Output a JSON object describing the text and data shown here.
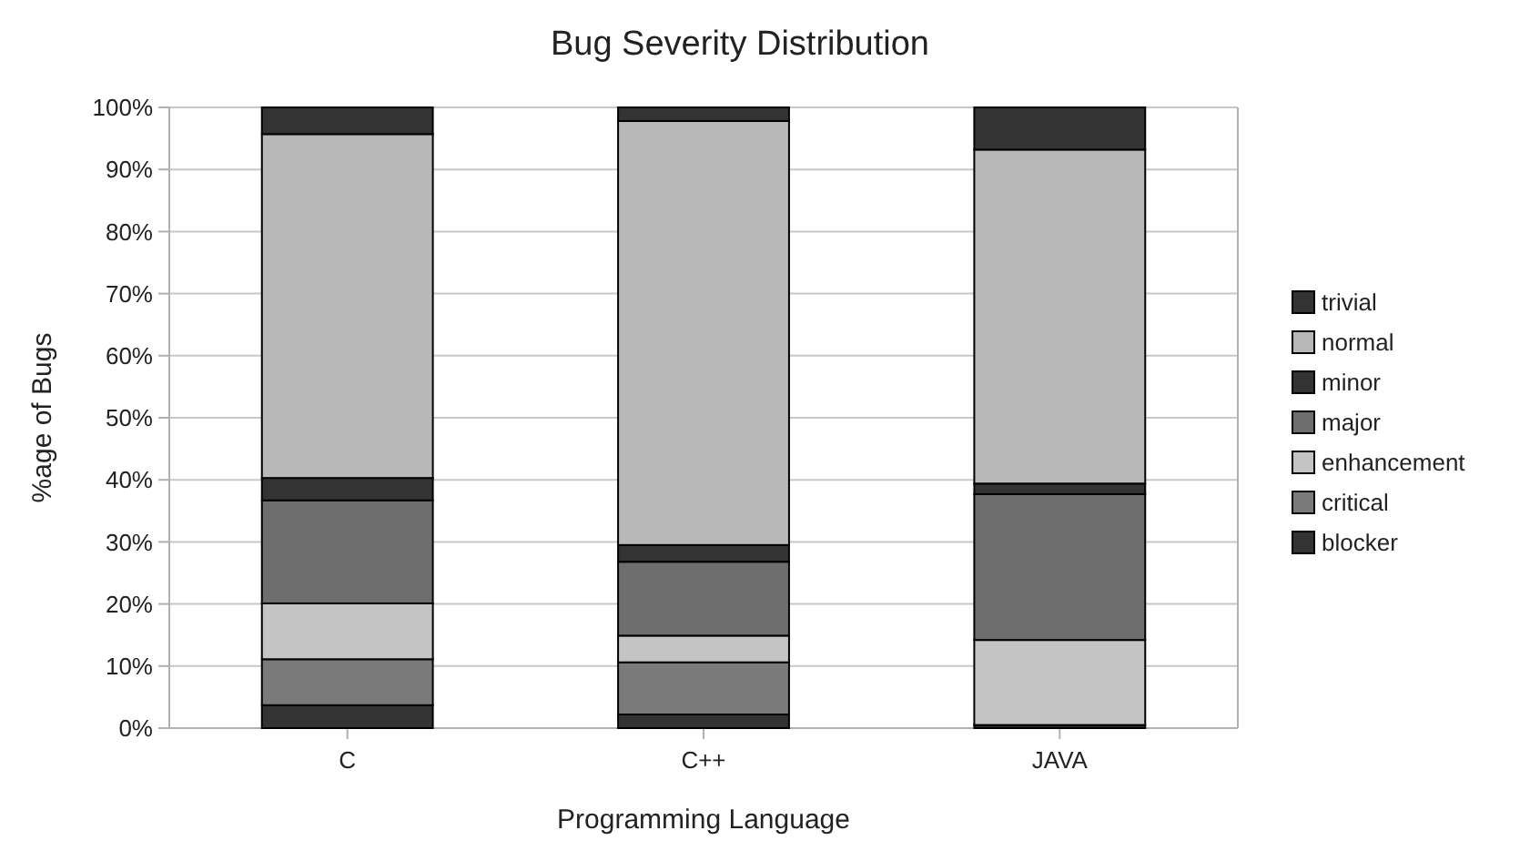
{
  "chart_data": {
    "type": "bar",
    "title": "Bug Severity Distribution",
    "xlabel": "Programming Language",
    "ylabel": "%age of Bugs",
    "categories": [
      "C",
      "C++",
      "JAVA"
    ],
    "stacked": true,
    "legend": "right",
    "grid": "y",
    "ylim": [
      0,
      100
    ],
    "yticks": [
      {
        "value": 0,
        "label": "0%"
      },
      {
        "value": 10,
        "label": "10%"
      },
      {
        "value": 20,
        "label": "20%"
      },
      {
        "value": 30,
        "label": "30%"
      },
      {
        "value": 40,
        "label": "40%"
      },
      {
        "value": 50,
        "label": "50%"
      },
      {
        "value": 60,
        "label": "60%"
      },
      {
        "value": 70,
        "label": "70%"
      },
      {
        "value": 80,
        "label": "80%"
      },
      {
        "value": 90,
        "label": "90%"
      },
      {
        "value": 100,
        "label": "100%"
      }
    ],
    "series": [
      {
        "name": "blocker",
        "color": "#333333",
        "values": [
          3.7,
          2.2,
          0.5
        ]
      },
      {
        "name": "critical",
        "color": "#7a7a7a",
        "values": [
          7.4,
          8.4,
          0
        ]
      },
      {
        "name": "enhancement",
        "color": "#c4c4c4",
        "values": [
          9.0,
          4.3,
          13.7
        ]
      },
      {
        "name": "major",
        "color": "#6e6e6e",
        "values": [
          16.6,
          11.9,
          23.5
        ]
      },
      {
        "name": "minor",
        "color": "#333333",
        "values": [
          3.6,
          2.7,
          1.7
        ]
      },
      {
        "name": "normal",
        "color": "#b8b8b8",
        "values": [
          55.4,
          68.3,
          53.8
        ]
      },
      {
        "name": "trivial",
        "color": "#333333",
        "values": [
          4.3,
          2.2,
          6.8
        ]
      }
    ]
  }
}
